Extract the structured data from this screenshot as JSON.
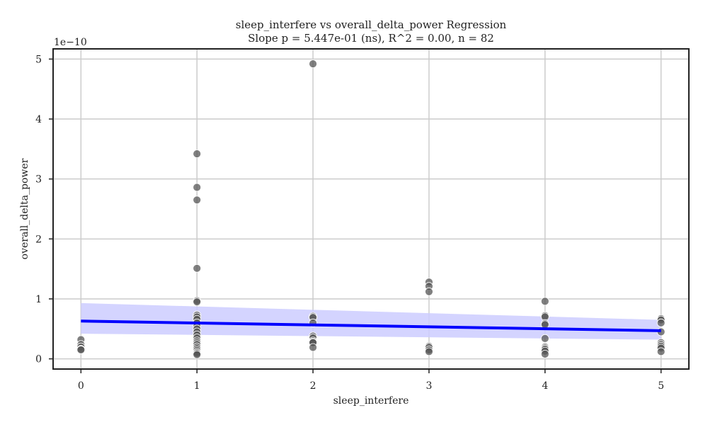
{
  "chart_data": {
    "type": "scatter",
    "title_line1": "sleep_interfere vs overall_delta_power Regression",
    "title_line2": "Slope p = 5.447e-01 (ns), R^2 = 0.00, n = 82",
    "xlabel": "sleep_interfere",
    "ylabel": "overall_delta_power",
    "y_scale_label": "1e−10",
    "xlim": [
      -0.24,
      5.24
    ],
    "ylim": [
      -0.17,
      5.17
    ],
    "x_ticks": [
      0,
      1,
      2,
      3,
      4,
      5
    ],
    "x_tick_labels": [
      "0",
      "1",
      "2",
      "3",
      "4",
      "5"
    ],
    "y_ticks": [
      0,
      1,
      2,
      3,
      4,
      5
    ],
    "y_tick_labels": [
      "0",
      "1",
      "2",
      "3",
      "4",
      "5"
    ],
    "grid": true,
    "point_color": "#555555",
    "line_color": "#0000ff",
    "band_color": "#ccccff",
    "points": [
      {
        "x": 0,
        "y": 0.32
      },
      {
        "x": 0,
        "y": 0.24
      },
      {
        "x": 0,
        "y": 0.2
      },
      {
        "x": 0,
        "y": 0.16
      },
      {
        "x": 0,
        "y": 0.15
      },
      {
        "x": 1,
        "y": 3.42
      },
      {
        "x": 1,
        "y": 2.86
      },
      {
        "x": 1,
        "y": 2.65
      },
      {
        "x": 1,
        "y": 1.51
      },
      {
        "x": 1,
        "y": 0.97
      },
      {
        "x": 1,
        "y": 0.95
      },
      {
        "x": 1,
        "y": 0.73
      },
      {
        "x": 1,
        "y": 0.7
      },
      {
        "x": 1,
        "y": 0.66
      },
      {
        "x": 1,
        "y": 0.6
      },
      {
        "x": 1,
        "y": 0.55
      },
      {
        "x": 1,
        "y": 0.5
      },
      {
        "x": 1,
        "y": 0.45
      },
      {
        "x": 1,
        "y": 0.4
      },
      {
        "x": 1,
        "y": 0.35
      },
      {
        "x": 1,
        "y": 0.3
      },
      {
        "x": 1,
        "y": 0.27
      },
      {
        "x": 1,
        "y": 0.24
      },
      {
        "x": 1,
        "y": 0.2
      },
      {
        "x": 1,
        "y": 0.17
      },
      {
        "x": 1,
        "y": 0.14
      },
      {
        "x": 1,
        "y": 0.11
      },
      {
        "x": 1,
        "y": 0.09
      },
      {
        "x": 1,
        "y": 0.07
      },
      {
        "x": 2,
        "y": 4.92
      },
      {
        "x": 2,
        "y": 0.71
      },
      {
        "x": 2,
        "y": 0.69
      },
      {
        "x": 2,
        "y": 0.6
      },
      {
        "x": 2,
        "y": 0.38
      },
      {
        "x": 2,
        "y": 0.35
      },
      {
        "x": 2,
        "y": 0.3
      },
      {
        "x": 2,
        "y": 0.28
      },
      {
        "x": 2,
        "y": 0.27
      },
      {
        "x": 2,
        "y": 0.19
      },
      {
        "x": 3,
        "y": 1.28
      },
      {
        "x": 3,
        "y": 1.21
      },
      {
        "x": 3,
        "y": 1.12
      },
      {
        "x": 3,
        "y": 0.21
      },
      {
        "x": 3,
        "y": 0.19
      },
      {
        "x": 3,
        "y": 0.15
      },
      {
        "x": 3,
        "y": 0.12
      },
      {
        "x": 4,
        "y": 0.96
      },
      {
        "x": 4,
        "y": 0.72
      },
      {
        "x": 4,
        "y": 0.7
      },
      {
        "x": 4,
        "y": 0.59
      },
      {
        "x": 4,
        "y": 0.57
      },
      {
        "x": 4,
        "y": 0.34
      },
      {
        "x": 4,
        "y": 0.2
      },
      {
        "x": 4,
        "y": 0.18
      },
      {
        "x": 4,
        "y": 0.16
      },
      {
        "x": 4,
        "y": 0.13
      },
      {
        "x": 4,
        "y": 0.08
      },
      {
        "x": 5,
        "y": 0.67
      },
      {
        "x": 5,
        "y": 0.65
      },
      {
        "x": 5,
        "y": 0.6
      },
      {
        "x": 5,
        "y": 0.45
      },
      {
        "x": 5,
        "y": 0.27
      },
      {
        "x": 5,
        "y": 0.24
      },
      {
        "x": 5,
        "y": 0.21
      },
      {
        "x": 5,
        "y": 0.18
      },
      {
        "x": 5,
        "y": 0.12
      }
    ],
    "regression_line": {
      "x": [
        0,
        5
      ],
      "y": [
        0.63,
        0.47
      ]
    },
    "confidence_band": {
      "x": [
        0,
        5
      ],
      "upper": [
        0.93,
        0.65
      ],
      "lower": [
        0.42,
        0.32
      ]
    }
  }
}
